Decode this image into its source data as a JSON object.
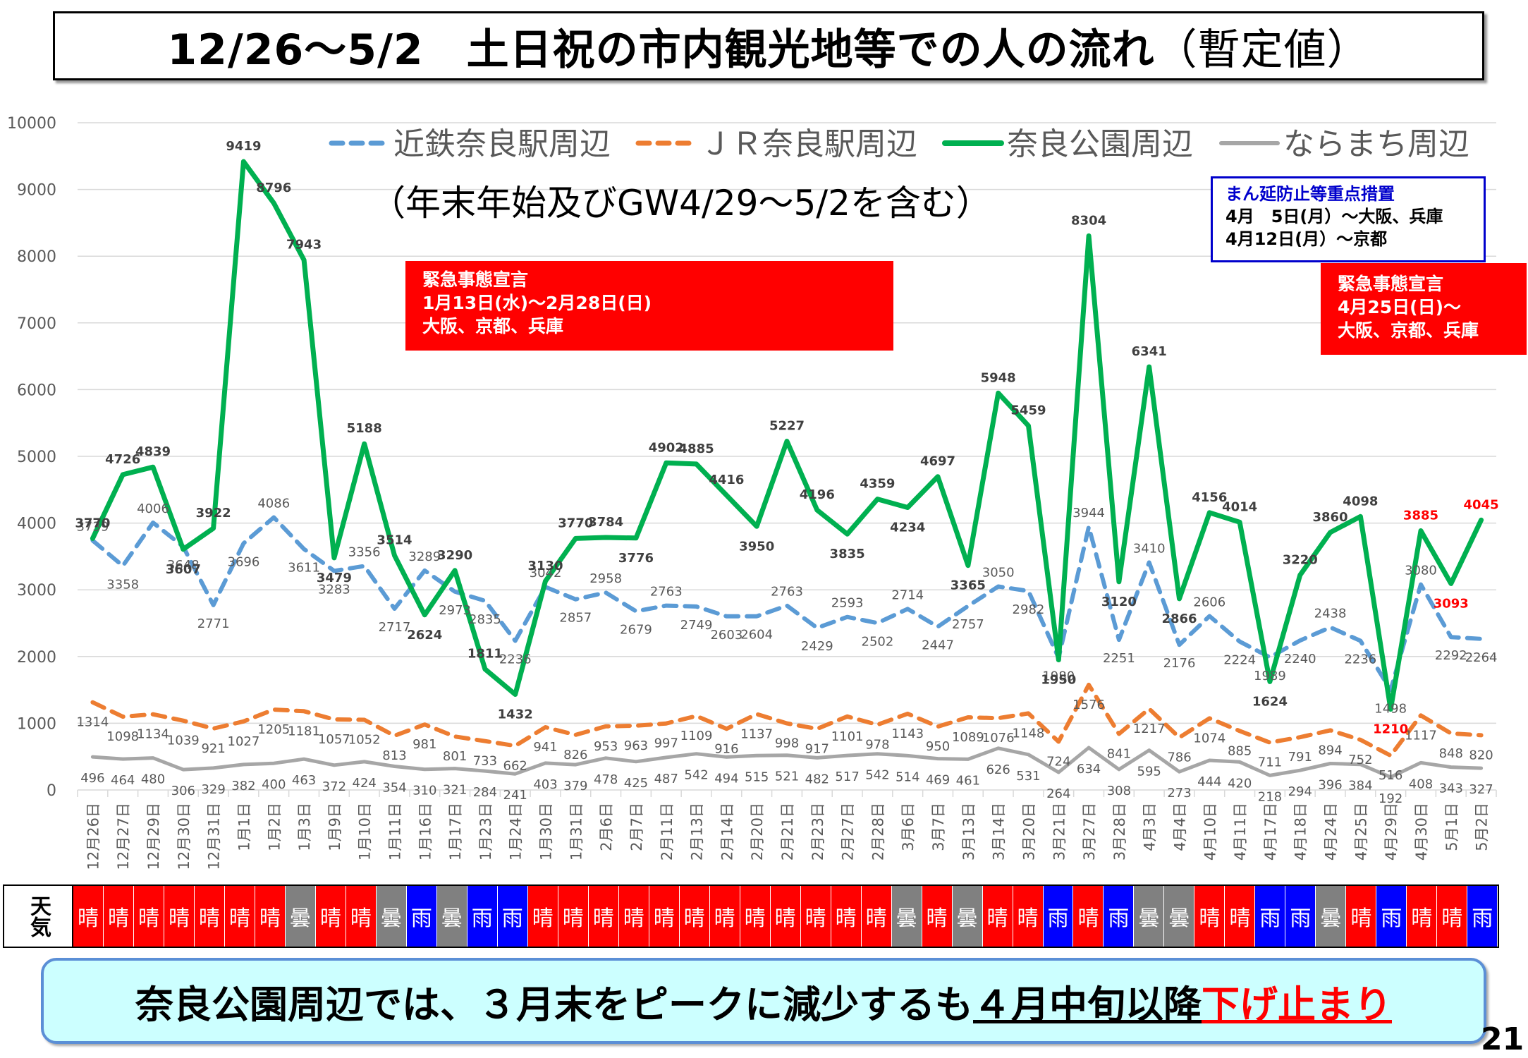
{
  "title": {
    "main": "12/26～5/2　土日祝の市内観光地等での人の流れ",
    "paren": "（暫定値）"
  },
  "subtitle": "（年末年始及びGW4/29～5/2を含む）",
  "emergency1": {
    "line1": "緊急事態宣言",
    "line2": "1月13日(水)～2月28日(日)",
    "line3": "大阪、京都、兵庫"
  },
  "emergency2": {
    "line1": "緊急事態宣言",
    "line2": "4月25日(日)～",
    "line3": "大阪、京都、兵庫"
  },
  "manen": {
    "title": "まん延防止等重点措置",
    "line1": "4月　5日(月）～大阪、兵庫",
    "line2": "4月12日(月）～京都"
  },
  "summary": {
    "a": "奈良公園周辺では、３月末をピークに減少するも",
    "b": "４月中旬以降",
    "c": "下げ止まり"
  },
  "page_number": "21",
  "weather_label": "天気",
  "weather": [
    "晴",
    "晴",
    "晴",
    "晴",
    "晴",
    "晴",
    "晴",
    "曇",
    "晴",
    "晴",
    "曇",
    "雨",
    "曇",
    "雨",
    "雨",
    "晴",
    "晴",
    "晴",
    "晴",
    "晴",
    "晴",
    "晴",
    "晴",
    "晴",
    "晴",
    "晴",
    "晴",
    "曇",
    "晴",
    "曇",
    "晴",
    "晴",
    "雨",
    "晴",
    "雨",
    "曇",
    "曇",
    "晴",
    "晴",
    "雨",
    "雨",
    "曇",
    "晴",
    "雨",
    "晴",
    "晴",
    "雨"
  ],
  "colors": {
    "晴": "#ff0000",
    "曇": "#808080",
    "雨": "#0000ff",
    "kintetsu": "#5b9bd5",
    "jr": "#ed7d31",
    "park": "#00b050",
    "naramachi": "#a6a6a6",
    "grid": "#d9d9d9",
    "red_label": "#ff0000"
  },
  "chart_data": {
    "type": "line",
    "ylim": [
      0,
      10000
    ],
    "yticks": [
      0,
      1000,
      2000,
      3000,
      4000,
      5000,
      6000,
      7000,
      8000,
      9000,
      10000
    ],
    "legend_position": "top",
    "grid": true,
    "categories": [
      "12月26日",
      "12月27日",
      "12月29日",
      "12月30日",
      "12月31日",
      "1月1日",
      "1月2日",
      "1月3日",
      "1月9日",
      "1月10日",
      "1月11日",
      "1月16日",
      "1月17日",
      "1月23日",
      "1月24日",
      "1月30日",
      "1月31日",
      "2月6日",
      "2月7日",
      "2月11日",
      "2月13日",
      "2月14日",
      "2月20日",
      "2月21日",
      "2月23日",
      "2月27日",
      "2月28日",
      "3月6日",
      "3月7日",
      "3月13日",
      "3月14日",
      "3月20日",
      "3月21日",
      "3月27日",
      "3月28日",
      "4月3日",
      "4月4日",
      "4月10日",
      "4月11日",
      "4月17日",
      "4月18日",
      "4月24日",
      "4月25日",
      "4月29日",
      "4月30日",
      "5月1日",
      "5月2日"
    ],
    "series": [
      {
        "name": "近鉄奈良駅周辺",
        "key": "kintetsu",
        "style": "dashed",
        "values": [
          3739,
          3358,
          4006,
          3648,
          2771,
          3696,
          4086,
          3611,
          3283,
          3356,
          2717,
          3289,
          2973,
          2835,
          2236,
          3042,
          2857,
          2958,
          2679,
          2763,
          2749,
          2603,
          2604,
          2763,
          2429,
          2593,
          2502,
          2714,
          2447,
          2757,
          3050,
          2982,
          1980,
          3944,
          2251,
          3410,
          2176,
          2606,
          2224,
          1989,
          2240,
          2438,
          2236,
          1498,
          3080,
          2292,
          2264
        ],
        "labels": [
          "3739",
          "3358",
          "4006",
          "3648",
          "2771",
          "3696",
          "4086",
          "3611",
          "3283",
          "3356",
          "2717",
          "3289",
          "2973",
          "2835",
          "2236",
          "3042",
          "2857",
          "2958",
          "2679",
          "2763",
          "2749",
          "2603",
          "2604",
          "2763",
          "2429",
          "2593",
          "2502",
          "2714",
          "2447",
          "2757",
          "3050",
          "2982",
          "1980",
          "3944",
          "2251",
          "3410",
          "2176",
          "2606",
          "2224",
          "1989",
          "2240",
          "2438",
          "2236",
          "1498",
          "3080",
          "2292",
          "2264"
        ]
      },
      {
        "name": "ＪＲ奈良駅周辺",
        "key": "jr",
        "style": "dashed",
        "values": [
          1314,
          1098,
          1134,
          1039,
          921,
          1027,
          1205,
          1181,
          1057,
          1052,
          813,
          981,
          801,
          733,
          662,
          941,
          826,
          953,
          963,
          997,
          1109,
          916,
          1137,
          998,
          917,
          1101,
          978,
          1143,
          950,
          1089,
          1076,
          1148,
          724,
          1576,
          841,
          1217,
          786,
          1074,
          885,
          711,
          791,
          894,
          752,
          516,
          1117,
          848,
          820
        ],
        "labels": [
          "1314",
          "1098",
          "1134",
          "1039",
          "921",
          "1027",
          "1205",
          "1181",
          "1057",
          "1052",
          "813",
          "981",
          "801",
          "733",
          "662",
          "941",
          "826",
          "953",
          "963",
          "997",
          "1109",
          "916",
          "1137",
          "998",
          "917",
          "1101",
          "978",
          "1143",
          "950",
          "1089",
          "1076",
          "1148",
          "724",
          "1576",
          "841",
          "1217",
          "786",
          "1074",
          "885",
          "711",
          "791",
          "894",
          "752",
          "516",
          "1117",
          "848",
          "820"
        ]
      },
      {
        "name": "奈良公園周辺",
        "key": "park",
        "style": "solid",
        "values": [
          3770,
          4726,
          4839,
          3607,
          3922,
          9419,
          8796,
          7943,
          3479,
          5188,
          3514,
          2624,
          3290,
          1811,
          1432,
          3130,
          3770,
          3784,
          3776,
          4902,
          4885,
          4416,
          3950,
          5227,
          4196,
          3835,
          4359,
          4234,
          4697,
          3365,
          5948,
          5459,
          1950,
          8304,
          3120,
          6341,
          2866,
          4156,
          4014,
          1624,
          3220,
          3860,
          4098,
          1210,
          3885,
          3093,
          4045
        ],
        "labels": [
          "3770",
          "4726",
          "4839",
          "3607",
          "3922",
          "9419",
          "8796",
          "7943",
          "3479",
          "5188",
          "3514",
          "2624",
          "3290",
          "1811",
          "1432",
          "3130",
          "3770",
          "3784",
          "3776",
          "4902",
          "4885",
          "4416",
          "3950",
          "5227",
          "4196",
          "3835",
          "4359",
          "4234",
          "4697",
          "3365",
          "5948",
          "5459",
          "1950",
          "8304",
          "3120",
          "6341",
          "2866",
          "4156",
          "4014",
          "1624",
          "3220",
          "3860",
          "4098",
          "1210",
          "3885",
          "3093",
          "4045"
        ],
        "red_label_indices": [
          43,
          44,
          45,
          46
        ]
      },
      {
        "name": "ならまち周辺",
        "key": "naramachi",
        "style": "solid",
        "values": [
          496,
          464,
          480,
          306,
          329,
          382,
          400,
          463,
          372,
          424,
          354,
          310,
          321,
          284,
          241,
          403,
          379,
          478,
          425,
          487,
          542,
          494,
          515,
          521,
          482,
          517,
          542,
          514,
          469,
          461,
          626,
          531,
          264,
          634,
          308,
          595,
          273,
          444,
          420,
          218,
          294,
          396,
          384,
          192,
          408,
          343,
          327
        ],
        "labels": [
          "496",
          "464",
          "480",
          "306",
          "329",
          "382",
          "400",
          "463",
          "372",
          "424",
          "354",
          "310",
          "321",
          "284",
          "241",
          "403",
          "379",
          "478",
          "425",
          "487",
          "542",
          "494",
          "515",
          "521",
          "482",
          "517",
          "542",
          "514",
          "469",
          "461",
          "626",
          "531",
          "264",
          "634",
          "308",
          "595",
          "273",
          "444",
          "420",
          "218",
          "294",
          "396",
          "384",
          "192",
          "408",
          "343",
          "327"
        ]
      }
    ]
  }
}
